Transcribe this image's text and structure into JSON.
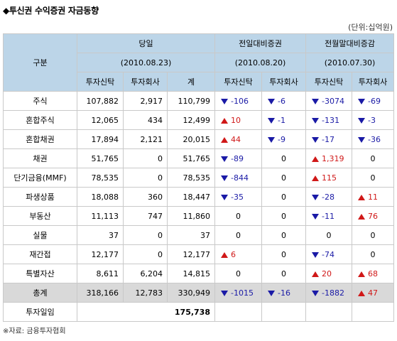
{
  "title": "◆투신권 수익증권 자금동향",
  "unit": "(단위:십억원)",
  "headers": {
    "category": "구분",
    "today": "당일",
    "today_date": "(2010.08.23)",
    "prev_day": "전일대비증권",
    "prev_day_date": "(2010.08.20)",
    "prev_month": "전월말대비증감",
    "prev_month_date": "(2010.07.30)",
    "sub": [
      "투자신탁",
      "투자회사",
      "계",
      "투자신탁",
      "투자회사",
      "투자신탁",
      "투자회사"
    ]
  },
  "rows": [
    {
      "name": "주식",
      "trust": "107,882",
      "company": "2,917",
      "total": "110,799",
      "d1": {
        "t": "-106",
        "dir": "down"
      },
      "d2": {
        "t": "-6",
        "dir": "down"
      },
      "m1": {
        "t": "-3074",
        "dir": "down"
      },
      "m2": {
        "t": "-69",
        "dir": "down"
      }
    },
    {
      "name": "혼합주식",
      "trust": "12,065",
      "company": "434",
      "total": "12,499",
      "d1": {
        "t": "10",
        "dir": "up"
      },
      "d2": {
        "t": "-1",
        "dir": "down"
      },
      "m1": {
        "t": "-131",
        "dir": "down"
      },
      "m2": {
        "t": "-3",
        "dir": "down"
      }
    },
    {
      "name": "혼합채권",
      "trust": "17,894",
      "company": "2,121",
      "total": "20,015",
      "d1": {
        "t": "44",
        "dir": "up"
      },
      "d2": {
        "t": "-9",
        "dir": "down"
      },
      "m1": {
        "t": "-17",
        "dir": "down"
      },
      "m2": {
        "t": "-36",
        "dir": "down"
      }
    },
    {
      "name": "채권",
      "trust": "51,765",
      "company": "0",
      "total": "51,765",
      "d1": {
        "t": "-89",
        "dir": "down"
      },
      "d2": {
        "t": "0",
        "dir": "zero"
      },
      "m1": {
        "t": "1,319",
        "dir": "up"
      },
      "m2": {
        "t": "0",
        "dir": "zero"
      }
    },
    {
      "name": "단기금융(MMF)",
      "trust": "78,535",
      "company": "0",
      "total": "78,535",
      "d1": {
        "t": "-844",
        "dir": "down"
      },
      "d2": {
        "t": "0",
        "dir": "zero"
      },
      "m1": {
        "t": "115",
        "dir": "up"
      },
      "m2": {
        "t": "0",
        "dir": "zero"
      }
    },
    {
      "name": "파생상품",
      "trust": "18,088",
      "company": "360",
      "total": "18,447",
      "d1": {
        "t": "-35",
        "dir": "down"
      },
      "d2": {
        "t": "0",
        "dir": "zero"
      },
      "m1": {
        "t": "-28",
        "dir": "down"
      },
      "m2": {
        "t": "11",
        "dir": "up"
      }
    },
    {
      "name": "부동산",
      "trust": "11,113",
      "company": "747",
      "total": "11,860",
      "d1": {
        "t": "0",
        "dir": "zero"
      },
      "d2": {
        "t": "0",
        "dir": "zero"
      },
      "m1": {
        "t": "-11",
        "dir": "down"
      },
      "m2": {
        "t": "76",
        "dir": "up"
      }
    },
    {
      "name": "실물",
      "trust": "37",
      "company": "0",
      "total": "37",
      "d1": {
        "t": "0",
        "dir": "zero"
      },
      "d2": {
        "t": "0",
        "dir": "zero"
      },
      "m1": {
        "t": "0",
        "dir": "zero"
      },
      "m2": {
        "t": "0",
        "dir": "zero"
      }
    },
    {
      "name": "재간접",
      "trust": "12,177",
      "company": "0",
      "total": "12,177",
      "d1": {
        "t": "6",
        "dir": "up"
      },
      "d2": {
        "t": "0",
        "dir": "zero"
      },
      "m1": {
        "t": "-74",
        "dir": "down"
      },
      "m2": {
        "t": "0",
        "dir": "zero"
      }
    },
    {
      "name": "특별자산",
      "trust": "8,611",
      "company": "6,204",
      "total": "14,815",
      "d1": {
        "t": "0",
        "dir": "zero"
      },
      "d2": {
        "t": "0",
        "dir": "zero"
      },
      "m1": {
        "t": "20",
        "dir": "up"
      },
      "m2": {
        "t": "68",
        "dir": "up"
      }
    }
  ],
  "total_row": {
    "name": "총계",
    "trust": "318,166",
    "company": "12,783",
    "total": "330,949",
    "d1": {
      "t": "-1015",
      "dir": "down"
    },
    "d2": {
      "t": "-16",
      "dir": "down"
    },
    "m1": {
      "t": "-1882",
      "dir": "down"
    },
    "m2": {
      "t": "47",
      "dir": "up"
    }
  },
  "investment_day": {
    "label": "투자일임",
    "value": "175,738"
  },
  "source": "※자료: 금융투자협회",
  "colors": {
    "header_bg": "#bcd5e8",
    "total_bg": "#d9d9d9",
    "up": "#d01818",
    "down": "#1a1aa6"
  }
}
